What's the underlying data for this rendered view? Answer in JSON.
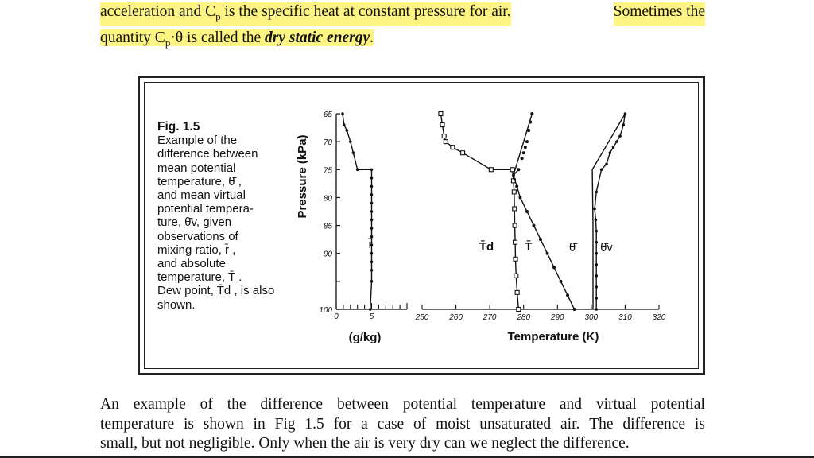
{
  "top_text": {
    "line1": {
      "pre": "acceleration and ",
      "cp_base": "C",
      "cp_sub": "p",
      "post": " is the specific heat at constant pressure for air.",
      "tail": "Sometimes the"
    },
    "line2": {
      "pre": "quantity ",
      "cp_base": "C",
      "cp_sub": "p",
      "mid": "·θ is called the ",
      "emph": "dry static energy",
      "end": "."
    },
    "highlight_color": "#fdf483"
  },
  "figure": {
    "caption_title": "Fig. 1.5",
    "caption_lines": [
      "Example of the",
      "difference between",
      "mean potential",
      "temperature, θ̄ ,",
      "and mean virtual",
      "potential tempera-",
      "ture, θ̄v, given",
      "observations of",
      "mixing ratio, r̄ ,",
      "and absolute",
      "temperature, T̄ .",
      "Dew point, T̄d , is also",
      "shown."
    ],
    "ylabel": "Pressure (kPa)",
    "left_xlabel": "(g/kg)",
    "right_xlabel": "Temperature (K)",
    "curve_labels": {
      "r": "r̄",
      "Td": "T̄d",
      "T": "T̄",
      "theta": "θ̄",
      "theta_v": "θ̄v"
    }
  },
  "chart_data": [
    {
      "type": "line",
      "xlabel": "(g/kg)",
      "ylabel": "Pressure (kPa)",
      "ylim": [
        65,
        100
      ],
      "xlim": [
        0,
        10
      ],
      "x_ticks": [
        0,
        5
      ],
      "y_ticks": [
        65,
        70,
        75,
        80,
        85,
        90,
        95,
        100
      ],
      "y_tick_labels": [
        "65",
        "70",
        "75",
        "80",
        "85",
        "90",
        "",
        "100"
      ],
      "series": [
        {
          "name": "r̄",
          "marker": "dot",
          "x": [
            5.0,
            5.0,
            5.0,
            5.0,
            5.0,
            5.0,
            5.0,
            5.0,
            5.0,
            5.0,
            5.0,
            5.0,
            5.0,
            5.0,
            4.8,
            3.0,
            2.4,
            2.0,
            1.5,
            1.1,
            0.9
          ],
          "y": [
            75,
            76.5,
            78,
            79.5,
            81,
            82.5,
            84,
            85.5,
            87,
            88.5,
            90,
            91.5,
            93,
            95,
            100,
            75,
            72,
            70,
            68,
            67,
            65
          ]
        }
      ]
    },
    {
      "type": "line",
      "xlabel": "Temperature (K)",
      "ylim": [
        65,
        100
      ],
      "xlim": [
        250,
        320
      ],
      "x_ticks": [
        250,
        260,
        270,
        280,
        290,
        300,
        310,
        320
      ],
      "series": [
        {
          "name": "T̄d",
          "marker": "square",
          "x": [
            278.5,
            278.1,
            277.8,
            277.6,
            277.5,
            277.4,
            277.3,
            277.2,
            277.0,
            276.7,
            270.4,
            262.0,
            259.0,
            257.0,
            256.5,
            256.0,
            255.5
          ],
          "y": [
            100,
            97,
            94,
            91,
            88,
            85,
            82,
            79,
            77,
            75,
            75,
            72,
            71,
            70,
            69,
            67,
            65
          ]
        },
        {
          "name": "T̄",
          "marker": "dot",
          "x": [
            295.0,
            293.0,
            291.0,
            289.0,
            287.0,
            285.0,
            283.0,
            281.0,
            279.0,
            278.0,
            277.0,
            278.5,
            279.5,
            280.0,
            280.5,
            281.0,
            281.5,
            282.0,
            282.5
          ],
          "y": [
            100,
            97.5,
            95,
            92.5,
            90,
            87.5,
            85,
            82.5,
            80,
            78,
            76,
            75,
            73,
            72,
            71,
            70,
            68,
            66.5,
            65
          ]
        },
        {
          "name": "θ̄",
          "marker": "line",
          "x": [
            300.5,
            300.5,
            300.3,
            310.0
          ],
          "y": [
            100,
            85,
            75,
            65
          ]
        },
        {
          "name": "θ̄v",
          "marker": "dot",
          "x": [
            301.5,
            301.5,
            301.5,
            301.5,
            301.5,
            301.5,
            301.5,
            301.5,
            301.3,
            301.0,
            301.5,
            303.0,
            304.5,
            305.5,
            306.5,
            307.5,
            308.5,
            309.5,
            310.0
          ],
          "y": [
            100,
            98,
            96,
            94,
            92,
            90,
            88,
            86,
            84,
            82,
            79,
            75,
            74,
            72,
            71,
            70,
            69,
            67,
            65
          ]
        }
      ]
    }
  ],
  "bottom_text": {
    "lines": [
      "An example of the difference between potential temperature and virtual potential",
      "temperature is shown in Fig 1.5 for a case of moist unsaturated air.  The difference is",
      "small, but not negligible.  Only when the air is very dry can we neglect the difference."
    ]
  }
}
